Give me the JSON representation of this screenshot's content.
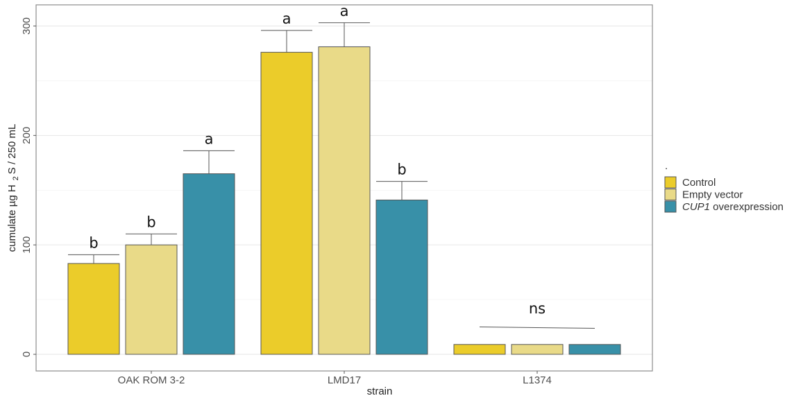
{
  "chart_data": {
    "type": "bar",
    "xlabel": "strain",
    "ylabel": "cumulate µg H",
    "ylabel_subscript": "2",
    "ylabel_suffix": "S / 250 mL",
    "ylim": [
      0,
      320
    ],
    "yticks": [
      0,
      100,
      200,
      300
    ],
    "grid": true,
    "legend_placement": "right",
    "legend_title": ".",
    "categories": [
      "OAK ROM 3-2",
      "LMD17",
      "L1374"
    ],
    "series": [
      {
        "name": "Control",
        "color": "#EBCC2A",
        "values": [
          83,
          276,
          9
        ],
        "errors": [
          8,
          20,
          0
        ]
      },
      {
        "name": "Empty vector",
        "color": "#E9DA88",
        "values": [
          100,
          281,
          9
        ],
        "errors": [
          10,
          22,
          0
        ]
      },
      {
        "name": "CUP1 overexpression",
        "name_italic": "CUP1",
        "name_rest": " overexpression",
        "color": "#3890A8",
        "values": [
          165,
          141,
          9
        ],
        "errors": [
          21,
          17,
          0
        ]
      }
    ],
    "significance": [
      [
        "b",
        "b",
        "a"
      ],
      [
        "a",
        "a",
        "b"
      ]
    ],
    "group_significance": {
      "label": "ns",
      "category": "L1374"
    }
  }
}
